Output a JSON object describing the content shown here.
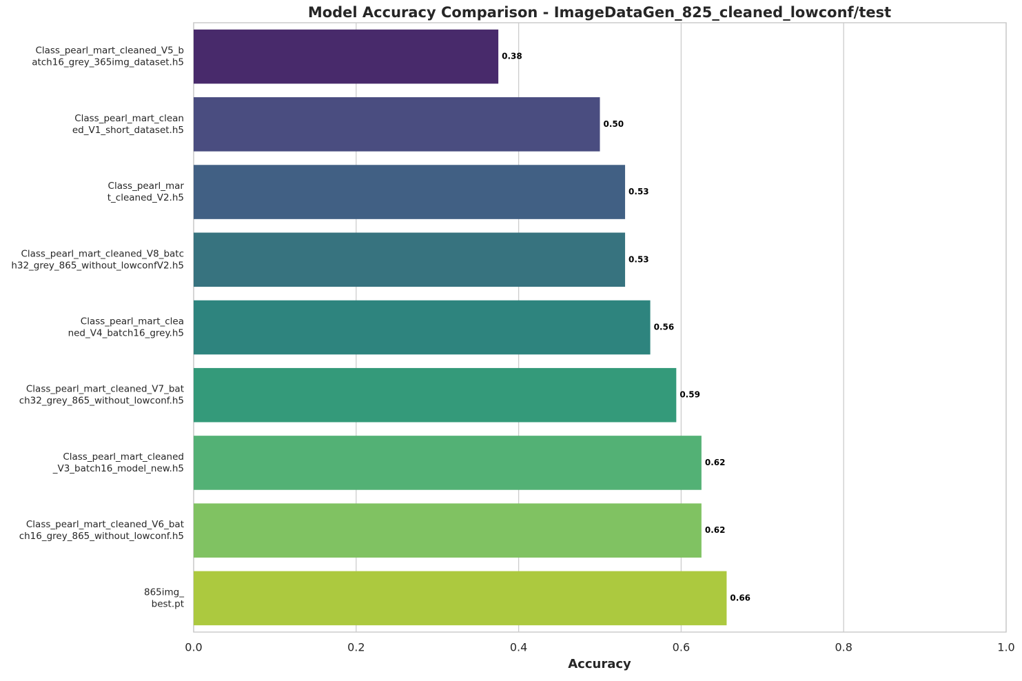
{
  "chart_data": {
    "type": "bar",
    "orientation": "horizontal",
    "title": "Model Accuracy Comparison - ImageDataGen_825_cleaned_lowconf/test",
    "x_label": "Accuracy",
    "categories": [
      "Class_pearl_mart_cleaned_V5_batch16_grey_365img_dataset.h5",
      "Class_pearl_mart_cleaned_V1_short_dataset.h5",
      "Class_pearl_mart_cleaned_V2.h5",
      "Class_pearl_mart_cleaned_V8_batch32_grey_865_without_lowconfV2.h5",
      "Class_pearl_mart_cleaned_V4_batch16_grey.h5",
      "Class_pearl_mart_cleaned_V7_batch32_grey_865_without_lowconf.h5",
      "Class_pearl_mart_cleaned_V3_batch16_model_new.h5",
      "Class_pearl_mart_cleaned_V6_batch16_grey_865_without_lowconf.h5",
      "865img_best.pt"
    ],
    "values": [
      0.375,
      0.5,
      0.531,
      0.531,
      0.562,
      0.594,
      0.625,
      0.625,
      0.656
    ],
    "value_labels": [
      "0.38",
      "0.50",
      "0.53",
      "0.53",
      "0.56",
      "0.59",
      "0.62",
      "0.62",
      "0.66"
    ],
    "colors": [
      "#482a6b",
      "#4a4d80",
      "#416084",
      "#37737f",
      "#2e847e",
      "#349a7a",
      "#53b175",
      "#80c262",
      "#acc93f"
    ],
    "xlim": [
      0,
      1
    ],
    "xticks": [
      {
        "value": 0,
        "label": "0.0"
      },
      0.2,
      0.4,
      0.6,
      0.8,
      {
        "value": 1,
        "label": "1.0"
      }
    ],
    "grid": true
  }
}
